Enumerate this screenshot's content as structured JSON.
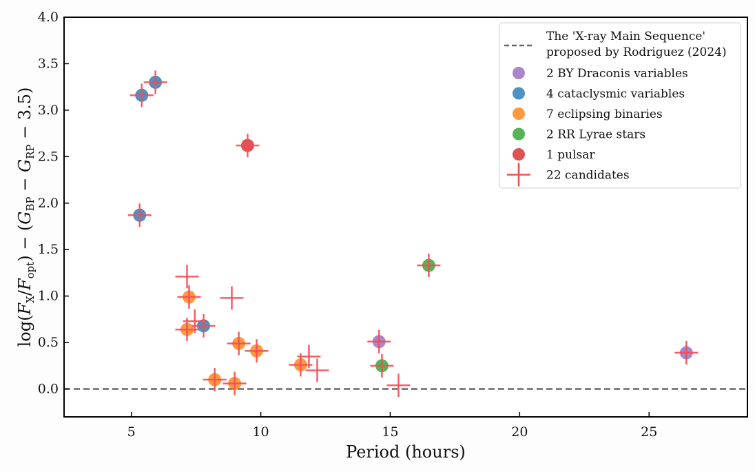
{
  "chart_data": {
    "type": "scatter",
    "title": "",
    "xlabel": "Period (hours)",
    "ylabel_parts": {
      "pre": "log(",
      "fx": "F",
      "fx_sub": "X",
      "slash": "/",
      "fo": "F",
      "fo_sub": "opt",
      "mid": ") − (",
      "g1": "G",
      "g1_sub": "BP",
      "minus": " − ",
      "g2": "G",
      "g2_sub": "RP",
      "post": " − 3.5)"
    },
    "ylabel": "log(F_X/F_opt) − (G_BP − G_RP − 3.5)",
    "xlim": [
      2.4,
      28.8
    ],
    "ylim": [
      -0.3,
      4.0
    ],
    "xticks": [
      5,
      10,
      15,
      20,
      25
    ],
    "yticks": [
      0.0,
      0.5,
      1.0,
      1.5,
      2.0,
      2.5,
      3.0,
      3.5,
      4.0
    ],
    "ytick_labels": [
      "0.0",
      "0.5",
      "1.0",
      "1.5",
      "2.0",
      "2.5",
      "3.0",
      "3.5",
      "4.0"
    ],
    "grid": false,
    "legend_position": "top-right",
    "reference_line": {
      "label_line1": "The 'X-ray Main Sequence'",
      "label_line2": "proposed by Rodriguez (2024)",
      "y": 0.0,
      "color": "#666666",
      "style": "dashed"
    },
    "series": [
      {
        "name": "2 BY Draconis variables",
        "color": "#9467bd",
        "marker": "circle",
        "x": [
          14.57,
          26.44
        ],
        "y": [
          0.51,
          0.39
        ]
      },
      {
        "name": "4 cataclysmic variables",
        "color": "#1f77b4",
        "marker": "circle",
        "x": [
          5.4,
          5.93,
          5.32,
          7.79
        ],
        "y": [
          3.16,
          3.3,
          1.87,
          0.68
        ]
      },
      {
        "name": "7 eclipsing binaries",
        "color": "#ff7f0e",
        "marker": "circle",
        "x": [
          7.23,
          7.15,
          9.15,
          9.84,
          8.22,
          8.99,
          11.54
        ],
        "y": [
          0.99,
          0.64,
          0.49,
          0.41,
          0.1,
          0.06,
          0.26
        ]
      },
      {
        "name": "2 RR Lyrae stars",
        "color": "#2ca02c",
        "marker": "circle",
        "x": [
          14.68,
          16.49
        ],
        "y": [
          0.25,
          1.33
        ]
      },
      {
        "name": "1 pulsar",
        "color": "#d62728",
        "marker": "circle",
        "x": [
          9.49
        ],
        "y": [
          2.62
        ]
      },
      {
        "name": "22 candidates",
        "color": "#f44d55",
        "marker": "plus",
        "x": [
          5.4,
          5.93,
          5.32,
          7.79,
          9.49,
          7.23,
          7.15,
          9.15,
          9.84,
          8.22,
          8.99,
          11.54,
          14.57,
          26.44,
          14.68,
          16.49,
          7.15,
          8.88,
          7.45,
          11.86,
          12.18,
          15.32
        ],
        "y": [
          3.16,
          3.3,
          1.87,
          0.68,
          2.62,
          0.99,
          0.64,
          0.49,
          0.41,
          0.1,
          0.06,
          0.26,
          0.51,
          0.39,
          0.25,
          1.33,
          1.21,
          0.98,
          0.73,
          0.35,
          0.2,
          0.04
        ]
      }
    ]
  }
}
